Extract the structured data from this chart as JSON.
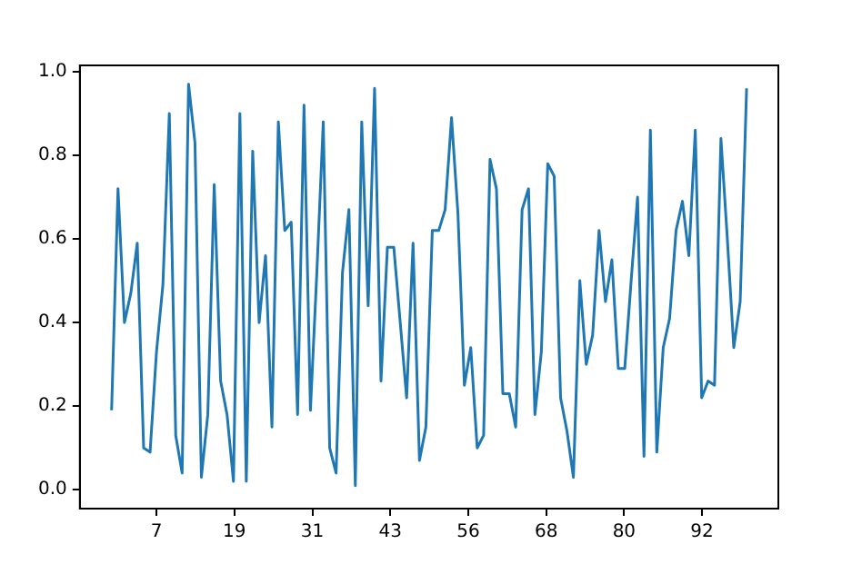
{
  "chart_data": {
    "type": "line",
    "x": [
      0,
      1,
      2,
      3,
      4,
      5,
      6,
      7,
      8,
      9,
      10,
      11,
      12,
      13,
      14,
      15,
      16,
      17,
      18,
      19,
      20,
      21,
      22,
      23,
      24,
      25,
      26,
      27,
      28,
      29,
      30,
      31,
      32,
      33,
      34,
      35,
      36,
      37,
      38,
      39,
      40,
      41,
      42,
      43,
      44,
      45,
      46,
      47,
      48,
      49,
      50,
      51,
      52,
      53,
      54,
      55,
      56,
      57,
      58,
      59,
      60,
      61,
      62,
      63,
      64,
      65,
      66,
      67,
      68,
      69,
      70,
      71,
      72,
      73,
      74,
      75,
      76,
      77,
      78,
      79,
      80,
      81,
      82,
      83,
      84,
      85,
      86,
      87,
      88,
      89,
      90,
      91,
      92,
      93,
      94,
      95,
      96,
      97,
      98,
      99
    ],
    "series": [
      {
        "color": "#1f77b4",
        "values": [
          0.19,
          0.72,
          0.4,
          0.47,
          0.59,
          0.1,
          0.09,
          0.33,
          0.49,
          0.9,
          0.13,
          0.04,
          0.97,
          0.83,
          0.03,
          0.18,
          0.73,
          0.26,
          0.18,
          0.02,
          0.9,
          0.02,
          0.81,
          0.4,
          0.56,
          0.15,
          0.88,
          0.62,
          0.64,
          0.18,
          0.92,
          0.19,
          0.52,
          0.88,
          0.1,
          0.04,
          0.52,
          0.67,
          0.01,
          0.88,
          0.44,
          0.96,
          0.26,
          0.58,
          0.58,
          0.4,
          0.22,
          0.59,
          0.07,
          0.15,
          0.62,
          0.62,
          0.67,
          0.89,
          0.66,
          0.25,
          0.34,
          0.1,
          0.13,
          0.79,
          0.72,
          0.23,
          0.23,
          0.15,
          0.67,
          0.72,
          0.18,
          0.33,
          0.78,
          0.75,
          0.22,
          0.14,
          0.03,
          0.5,
          0.3,
          0.37,
          0.62,
          0.45,
          0.55,
          0.29,
          0.29,
          0.5,
          0.7,
          0.08,
          0.86,
          0.09,
          0.34,
          0.41,
          0.62,
          0.69,
          0.56,
          0.86,
          0.22,
          0.26,
          0.25,
          0.84,
          0.6,
          0.34,
          0.45,
          0.96
        ]
      }
    ],
    "xlim": [
      -4.95,
      103.95
    ],
    "xticks": [
      7,
      {
        "value": 19.15,
        "label": "19"
      },
      {
        "value": 31.3,
        "label": "31"
      },
      {
        "value": 43.45,
        "label": "43"
      },
      {
        "value": 55.6,
        "label": "56"
      },
      {
        "value": 67.75,
        "label": "68"
      },
      {
        "value": 79.9,
        "label": "80"
      },
      {
        "value": 92.05,
        "label": "92"
      }
    ],
    "ylim": [
      -0.045,
      1.015
    ],
    "yticks": [
      {
        "value": 0,
        "label": "0.0"
      },
      {
        "value": 0.2,
        "label": "0.2"
      },
      {
        "value": 0.4,
        "label": "0.4"
      },
      {
        "value": 0.6,
        "label": "0.6"
      },
      {
        "value": 0.8,
        "label": "0.8"
      },
      {
        "value": 1,
        "label": "1.0"
      }
    ],
    "grid": false,
    "legend": false,
    "marker": "none",
    "line_style": "solid"
  }
}
